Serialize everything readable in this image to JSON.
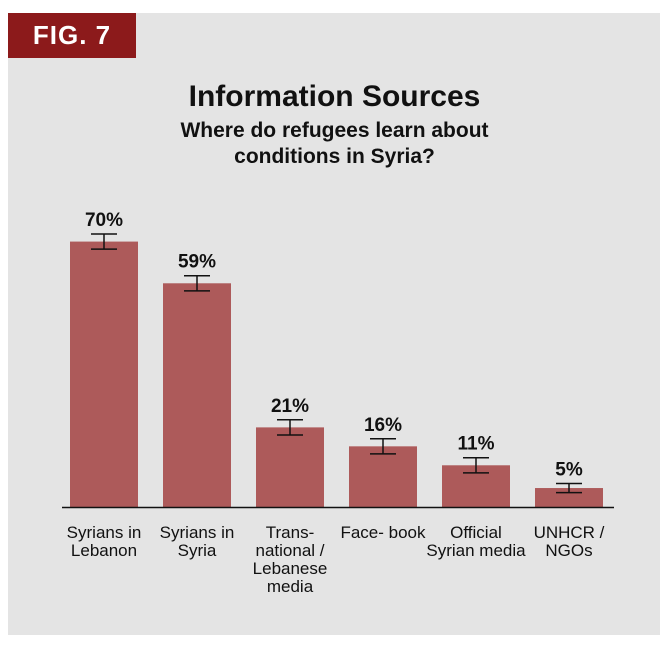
{
  "figure_label": "FIG. 7",
  "chart_data": {
    "type": "bar",
    "title": "Information Sources",
    "subtitle": "Where do refugees learn about conditions in Syria?",
    "categories": [
      "Syrians in Lebanon",
      "Syrians in Syria",
      "Trans- national / Lebanese media",
      "Face- book",
      "Official Syrian media",
      "UNHCR / NGOs"
    ],
    "values": [
      70,
      59,
      21,
      16,
      11,
      5
    ],
    "value_labels": [
      "70%",
      "59%",
      "21%",
      "16%",
      "11%",
      "5%"
    ],
    "error_bars": [
      2,
      2,
      2,
      2,
      2,
      1.2
    ],
    "ylim": [
      0,
      72
    ],
    "grid": false,
    "bar_color": "#ad5a5a",
    "panel_color": "#e4e4e4",
    "label_color": "#8c1a1b"
  }
}
